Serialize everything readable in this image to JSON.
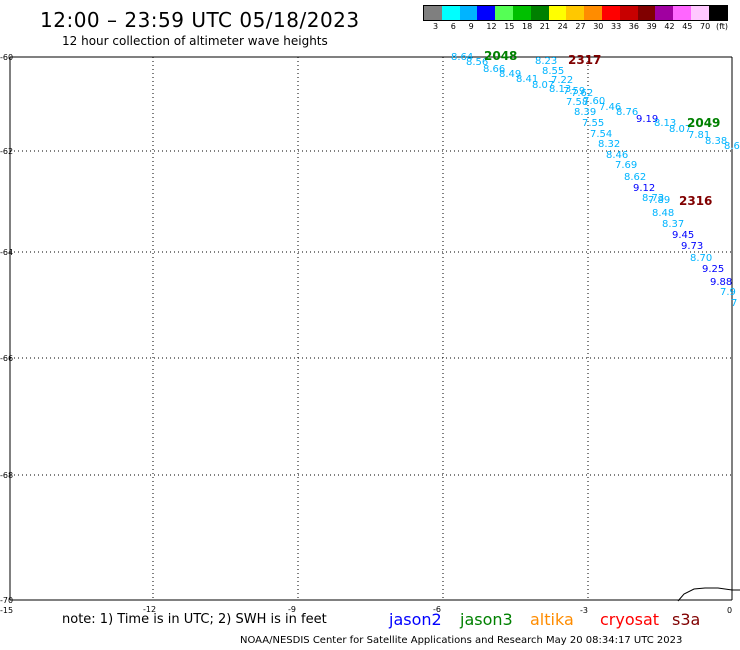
{
  "header": {
    "title": "12:00 – 23:59 UTC 05/18/2023",
    "subtitle": "12 hour collection of altimeter wave heights"
  },
  "colorbar": {
    "unit": "(ft)",
    "labels": [
      "3",
      "6",
      "9",
      "12",
      "15",
      "18",
      "21",
      "24",
      "27",
      "30",
      "33",
      "36",
      "39",
      "42",
      "45",
      "70"
    ],
    "colors": [
      "#7f7f7f",
      "#00ffff",
      "#00b4ff",
      "#0000ff",
      "#55ff55",
      "#00c000",
      "#008000",
      "#ffff00",
      "#ffc800",
      "#ff8c00",
      "#ff0000",
      "#c80000",
      "#800000",
      "#a000a0",
      "#ff66ff",
      "#ffc8ff",
      "#000000"
    ]
  },
  "axes": {
    "lat_labels": [
      "-60",
      "-62",
      "-64",
      "-66",
      "-68",
      "-70"
    ],
    "lon_labels": [
      "-15",
      "-12",
      "-9",
      "-6",
      "-3",
      "0"
    ]
  },
  "points": [
    {
      "v": "8.64",
      "c": "#00b4ff"
    },
    {
      "v": "8.56",
      "c": "#00b4ff"
    },
    {
      "v": "8.66",
      "c": "#00b4ff"
    },
    {
      "v": "8.49",
      "c": "#00b4ff"
    },
    {
      "v": "8.41",
      "c": "#00b4ff"
    },
    {
      "v": "8.07",
      "c": "#00b4ff"
    },
    {
      "v": "8.13",
      "c": "#00b4ff"
    },
    {
      "v": "8.23",
      "c": "#00b4ff"
    },
    {
      "v": "8.55",
      "c": "#00b4ff"
    },
    {
      "v": "7.22",
      "c": "#00b4ff"
    },
    {
      "v": "7.59",
      "c": "#00b4ff"
    },
    {
      "v": "7.62",
      "c": "#00b4ff"
    },
    {
      "v": "7.58",
      "c": "#00b4ff"
    },
    {
      "v": "7.60",
      "c": "#00b4ff"
    },
    {
      "v": "7.46",
      "c": "#00b4ff"
    },
    {
      "v": "8.39",
      "c": "#00b4ff"
    },
    {
      "v": "8.76",
      "c": "#00b4ff"
    },
    {
      "v": "9.19",
      "c": "#0000ff"
    },
    {
      "v": "8.13",
      "c": "#00b4ff"
    },
    {
      "v": "8.07",
      "c": "#00b4ff"
    },
    {
      "v": "7.81",
      "c": "#00b4ff"
    },
    {
      "v": "8.38",
      "c": "#00b4ff"
    },
    {
      "v": "8.6",
      "c": "#00b4ff"
    },
    {
      "v": "7.55",
      "c": "#00b4ff"
    },
    {
      "v": "7.54",
      "c": "#00b4ff"
    },
    {
      "v": "8.32",
      "c": "#00b4ff"
    },
    {
      "v": "8.46",
      "c": "#00b4ff"
    },
    {
      "v": "7.69",
      "c": "#00b4ff"
    },
    {
      "v": "8.62",
      "c": "#00b4ff"
    },
    {
      "v": "9.12",
      "c": "#0000ff"
    },
    {
      "v": "8.73",
      "c": "#00b4ff"
    },
    {
      "v": "7.89",
      "c": "#00b4ff"
    },
    {
      "v": "8.48",
      "c": "#00b4ff"
    },
    {
      "v": "8.37",
      "c": "#00b4ff"
    },
    {
      "v": "9.45",
      "c": "#0000ff"
    },
    {
      "v": "9.73",
      "c": "#0000ff"
    },
    {
      "v": "8.70",
      "c": "#00b4ff"
    },
    {
      "v": "9.25",
      "c": "#0000ff"
    },
    {
      "v": "9.88",
      "c": "#0000ff"
    },
    {
      "v": "7.9",
      "c": "#00b4ff"
    },
    {
      "v": "7",
      "c": "#00b4ff"
    }
  ],
  "passes": [
    {
      "label": "2048",
      "c": "#008000"
    },
    {
      "label": "2317",
      "c": "#800000"
    },
    {
      "label": "2049",
      "c": "#008000"
    },
    {
      "label": "2316",
      "c": "#800000"
    }
  ],
  "footer": {
    "note": "note: 1) Time is in UTC; 2) SWH is in feet",
    "satellites": [
      {
        "name": "jason2",
        "color": "#0000ff"
      },
      {
        "name": "jason3",
        "color": "#008000"
      },
      {
        "name": "altika",
        "color": "#ff8c00"
      },
      {
        "name": "cryosat",
        "color": "#ff0000"
      },
      {
        "name": "s3a",
        "color": "#800000"
      }
    ],
    "credit": "NOAA/NESDIS Center for Satellite Applications and Research    May 20 08:34:17 UTC 2023"
  }
}
